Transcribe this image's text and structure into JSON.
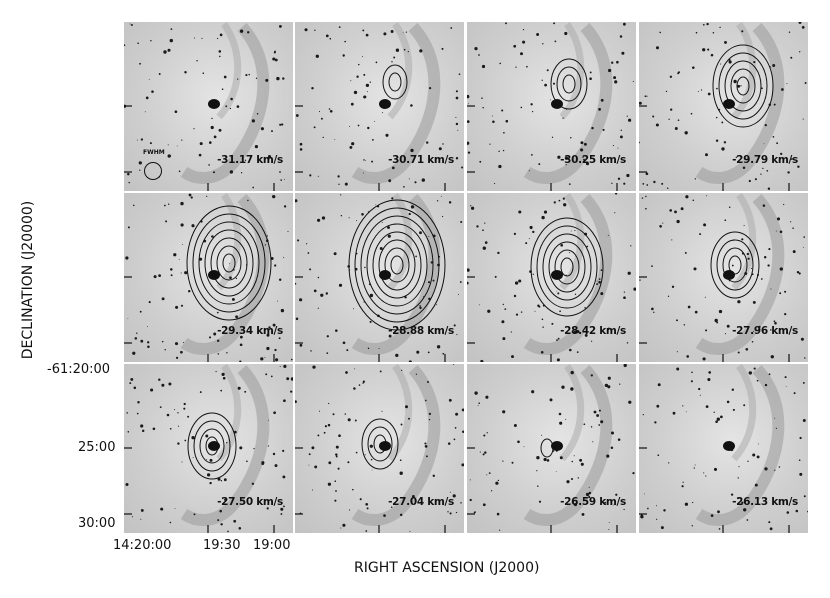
{
  "figure": {
    "ylabel": "DECLINATION (J20000)",
    "xlabel": "RIGHT ASCENSION (J2000)",
    "ytick_labels": [
      "-61:20:00",
      "25:00",
      "30:00"
    ],
    "xtick_labels": [
      "14:20:00",
      "19:30",
      "19:00"
    ],
    "beam_label": "FWHM",
    "colors": {
      "contour": "#111111",
      "background": "#c8c8c8",
      "stars": "#1a1a1a"
    }
  },
  "panels": [
    {
      "velocity": "-31.17 km/s",
      "contours": 0
    },
    {
      "velocity": "-30.71 km/s",
      "contours": 2
    },
    {
      "velocity": "-30.25 km/s",
      "contours": 3
    },
    {
      "velocity": "-29.79 km/s",
      "contours": 5
    },
    {
      "velocity": "-29.34 km/s",
      "contours": 7
    },
    {
      "velocity": "-28.88 km/s",
      "contours": 8
    },
    {
      "velocity": "-28.42 km/s",
      "contours": 6
    },
    {
      "velocity": "-27.96 km/s",
      "contours": 4
    },
    {
      "velocity": "-27.50 km/s",
      "contours": 4
    },
    {
      "velocity": "-27.04 km/s",
      "contours": 3
    },
    {
      "velocity": "-26.59 km/s",
      "contours": 1
    },
    {
      "velocity": "-26.13 km/s",
      "contours": 0
    }
  ]
}
